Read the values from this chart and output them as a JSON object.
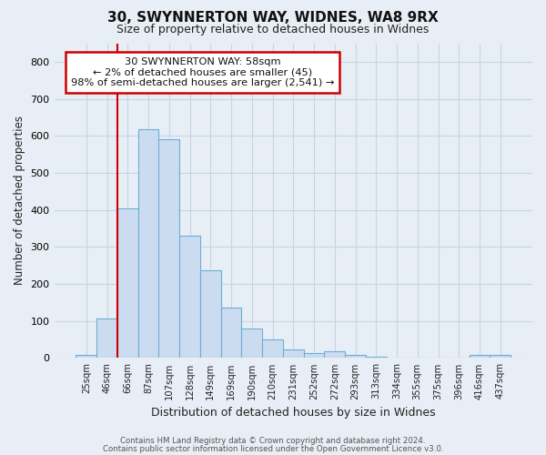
{
  "title1": "30, SWYNNERTON WAY, WIDNES, WA8 9RX",
  "title2": "Size of property relative to detached houses in Widnes",
  "xlabel": "Distribution of detached houses by size in Widnes",
  "ylabel": "Number of detached properties",
  "categories": [
    "25sqm",
    "46sqm",
    "66sqm",
    "87sqm",
    "107sqm",
    "128sqm",
    "149sqm",
    "169sqm",
    "190sqm",
    "210sqm",
    "231sqm",
    "252sqm",
    "272sqm",
    "293sqm",
    "313sqm",
    "334sqm",
    "355sqm",
    "375sqm",
    "396sqm",
    "416sqm",
    "437sqm"
  ],
  "values": [
    8,
    107,
    403,
    617,
    591,
    330,
    237,
    135,
    79,
    51,
    24,
    14,
    18,
    9,
    4,
    1,
    1,
    0,
    0,
    9,
    9
  ],
  "bar_color": "#ccdcf0",
  "bar_edge_color": "#6baed6",
  "vline_x_pos": 1.5,
  "vline_color": "#cc0000",
  "annotation_text": "30 SWYNNERTON WAY: 58sqm\n← 2% of detached houses are smaller (45)\n98% of semi-detached houses are larger (2,541) →",
  "annotation_box_color": "#ffffff",
  "annotation_box_edge": "#cc0000",
  "ylim": [
    0,
    850
  ],
  "yticks": [
    0,
    100,
    200,
    300,
    400,
    500,
    600,
    700,
    800
  ],
  "footer1": "Contains HM Land Registry data © Crown copyright and database right 2024.",
  "footer2": "Contains public sector information licensed under the Open Government Licence v3.0.",
  "bg_color": "#e8eef5",
  "plot_bg_color": "#e8eef5",
  "grid_color": "#c8d4e4"
}
